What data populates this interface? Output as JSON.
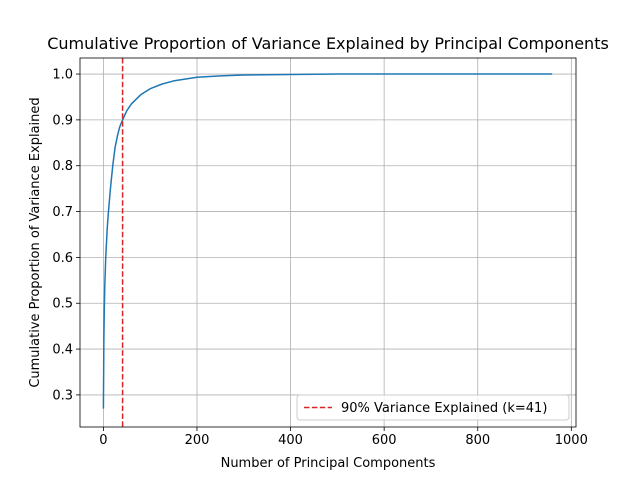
{
  "chart_data": {
    "type": "line",
    "title": "Cumulative Proportion of Variance Explained by Principal Components",
    "xlabel": "Number of Principal Components",
    "ylabel": "Cumulative Proportion of Variance Explained",
    "xlim": [
      -50,
      1010
    ],
    "ylim": [
      0.23,
      1.035
    ],
    "xticks": [
      0,
      200,
      400,
      600,
      800,
      1000
    ],
    "yticks": [
      0.3,
      0.4,
      0.5,
      0.6,
      0.7,
      0.8,
      0.9,
      1.0
    ],
    "xtick_labels": [
      "0",
      "200",
      "400",
      "600",
      "800",
      "1000"
    ],
    "ytick_labels": [
      "0.3",
      "0.4",
      "0.5",
      "0.6",
      "0.7",
      "0.8",
      "0.9",
      "1.0"
    ],
    "grid": true,
    "legend_position": "lower-right",
    "series": [
      {
        "color": "#1f77b4",
        "x": [
          0,
          1,
          2,
          3,
          5,
          8,
          10,
          15,
          20,
          25,
          30,
          35,
          41,
          50,
          60,
          80,
          100,
          125,
          150,
          200,
          250,
          300,
          400,
          500,
          600,
          700,
          800,
          900,
          959
        ],
        "y": [
          0.27,
          0.42,
          0.49,
          0.54,
          0.6,
          0.66,
          0.69,
          0.75,
          0.8,
          0.84,
          0.865,
          0.885,
          0.9,
          0.92,
          0.935,
          0.955,
          0.968,
          0.978,
          0.985,
          0.993,
          0.996,
          0.998,
          0.999,
          1.0,
          1.0,
          1.0,
          1.0,
          1.0,
          1.0
        ]
      }
    ],
    "reference_lines": [
      {
        "orientation": "vertical",
        "x": 41,
        "color": "#d62728",
        "style": "dashed",
        "label": "90% Variance Explained (k=41)"
      }
    ]
  }
}
